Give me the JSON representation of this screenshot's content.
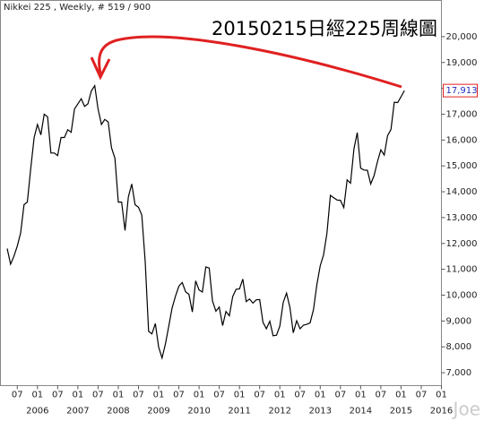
{
  "chart_data": {
    "type": "line",
    "title": "20150215日經225周線圖",
    "subtitle": "Nikkei 225 , Weekly, # 519 / 900",
    "watermark": "Joe",
    "color": "#000000",
    "x": [
      "2005-04",
      "2005-05",
      "2005-06",
      "2005-07",
      "2005-08",
      "2005-09",
      "2005-10",
      "2005-11",
      "2005-12",
      "2006-01",
      "2006-02",
      "2006-03",
      "2006-04",
      "2006-05",
      "2006-06",
      "2006-07",
      "2006-08",
      "2006-09",
      "2006-10",
      "2006-11",
      "2006-12",
      "2007-01",
      "2007-02",
      "2007-03",
      "2007-04",
      "2007-05",
      "2007-06",
      "2007-07",
      "2007-08",
      "2007-09",
      "2007-10",
      "2007-11",
      "2007-12",
      "2008-01",
      "2008-02",
      "2008-03",
      "2008-04",
      "2008-05",
      "2008-06",
      "2008-07",
      "2008-08",
      "2008-09",
      "2008-10",
      "2008-11",
      "2008-12",
      "2009-01",
      "2009-02",
      "2009-03",
      "2009-04",
      "2009-05",
      "2009-06",
      "2009-07",
      "2009-08",
      "2009-09",
      "2009-10",
      "2009-11",
      "2009-12",
      "2010-01",
      "2010-02",
      "2010-03",
      "2010-04",
      "2010-05",
      "2010-06",
      "2010-07",
      "2010-08",
      "2010-09",
      "2010-10",
      "2010-11",
      "2010-12",
      "2011-01",
      "2011-02",
      "2011-03",
      "2011-04",
      "2011-05",
      "2011-06",
      "2011-07",
      "2011-08",
      "2011-09",
      "2011-10",
      "2011-11",
      "2011-12",
      "2012-01",
      "2012-02",
      "2012-03",
      "2012-04",
      "2012-05",
      "2012-06",
      "2012-07",
      "2012-08",
      "2012-09",
      "2012-10",
      "2012-11",
      "2012-12",
      "2013-01",
      "2013-02",
      "2013-03",
      "2013-04",
      "2013-05",
      "2013-06",
      "2013-07",
      "2013-08",
      "2013-09",
      "2013-10",
      "2013-11",
      "2013-12",
      "2014-01",
      "2014-02",
      "2014-03",
      "2014-04",
      "2014-05",
      "2014-06",
      "2014-07",
      "2014-08",
      "2014-09",
      "2014-10",
      "2014-11",
      "2014-12",
      "2015-01",
      "2015-02"
    ],
    "values": [
      11800,
      11200,
      11500,
      11900,
      12400,
      13500,
      13600,
      14900,
      16100,
      16600,
      16200,
      17000,
      16900,
      15500,
      15500,
      15400,
      16100,
      16100,
      16400,
      16300,
      17200,
      17400,
      17600,
      17300,
      17400,
      17900,
      18100,
      17200,
      16600,
      16800,
      16700,
      15700,
      15300,
      13600,
      13600,
      12500,
      13800,
      14300,
      13500,
      13400,
      13100,
      11300,
      8600,
      8500,
      8900,
      7990,
      7570,
      8100,
      8800,
      9500,
      9960,
      10350,
      10490,
      10130,
      10030,
      9350,
      10550,
      10200,
      10120,
      11090,
      11050,
      9770,
      9380,
      9540,
      8820,
      9370,
      9200,
      9940,
      10230,
      10240,
      10620,
      9750,
      9850,
      9690,
      9820,
      9830,
      8950,
      8700,
      8990,
      8430,
      8450,
      8800,
      9720,
      10080,
      9520,
      8540,
      9010,
      8700,
      8840,
      8870,
      8930,
      9450,
      10400,
      11140,
      11560,
      12400,
      13860,
      13770,
      13680,
      13670,
      13390,
      14460,
      14330,
      15660,
      16290,
      14910,
      14840,
      14830,
      14300,
      14630,
      15160,
      15620,
      15420,
      16170,
      16410,
      17460,
      17450,
      17670,
      17913
    ],
    "last_price": {
      "value": 17913,
      "label": "17,913"
    },
    "xlim": [
      "2005-02",
      "2016-01"
    ],
    "xticks": [
      {
        "value": "2005-07",
        "label": "07"
      },
      {
        "value": "2006-01",
        "label": "01"
      },
      {
        "value": "2006-07",
        "label": "07"
      },
      {
        "value": "2007-01",
        "label": "01"
      },
      {
        "value": "2007-07",
        "label": "07"
      },
      {
        "value": "2008-01",
        "label": "01"
      },
      {
        "value": "2008-07",
        "label": "07"
      },
      {
        "value": "2009-01",
        "label": "01"
      },
      {
        "value": "2009-07",
        "label": "07"
      },
      {
        "value": "2010-01",
        "label": "01"
      },
      {
        "value": "2010-07",
        "label": "07"
      },
      {
        "value": "2011-01",
        "label": "01"
      },
      {
        "value": "2011-07",
        "label": "07"
      },
      {
        "value": "2012-01",
        "label": "01"
      },
      {
        "value": "2012-07",
        "label": "07"
      },
      {
        "value": "2013-01",
        "label": "01"
      },
      {
        "value": "2013-07",
        "label": "07"
      },
      {
        "value": "2014-01",
        "label": "01"
      },
      {
        "value": "2014-07",
        "label": "07"
      },
      {
        "value": "2015-01",
        "label": "01"
      },
      {
        "value": "2015-07",
        "label": "07"
      },
      {
        "value": "2016-01",
        "label": "01"
      }
    ],
    "year_labels": [
      {
        "value": "2006-01",
        "label": "2006"
      },
      {
        "value": "2007-01",
        "label": "2007"
      },
      {
        "value": "2008-01",
        "label": "2008"
      },
      {
        "value": "2009-01",
        "label": "2009"
      },
      {
        "value": "2010-01",
        "label": "2010"
      },
      {
        "value": "2011-01",
        "label": "2011"
      },
      {
        "value": "2012-01",
        "label": "2012"
      },
      {
        "value": "2013-01",
        "label": "2013"
      },
      {
        "value": "2014-01",
        "label": "2014"
      },
      {
        "value": "2015-01",
        "label": "2015"
      },
      {
        "value": "2016-01",
        "label": "2016"
      }
    ],
    "ylim": [
      6500,
      21400
    ],
    "yticks": [
      {
        "value": 7000,
        "label": "7,000"
      },
      {
        "value": 8000,
        "label": "8,000"
      },
      {
        "value": 9000,
        "label": "9,000"
      },
      {
        "value": 10000,
        "label": "10,000"
      },
      {
        "value": 11000,
        "label": "11,000"
      },
      {
        "value": 12000,
        "label": "12,000"
      },
      {
        "value": 13000,
        "label": "13,000"
      },
      {
        "value": 14000,
        "label": "14,000"
      },
      {
        "value": 15000,
        "label": "15,000"
      },
      {
        "value": 16000,
        "label": "16,000"
      },
      {
        "value": 17000,
        "label": "17,000"
      },
      {
        "value": 18000,
        "label": "18,000"
      },
      {
        "value": 19000,
        "label": "19,000"
      },
      {
        "value": 20000,
        "label": "20,000"
      }
    ]
  }
}
